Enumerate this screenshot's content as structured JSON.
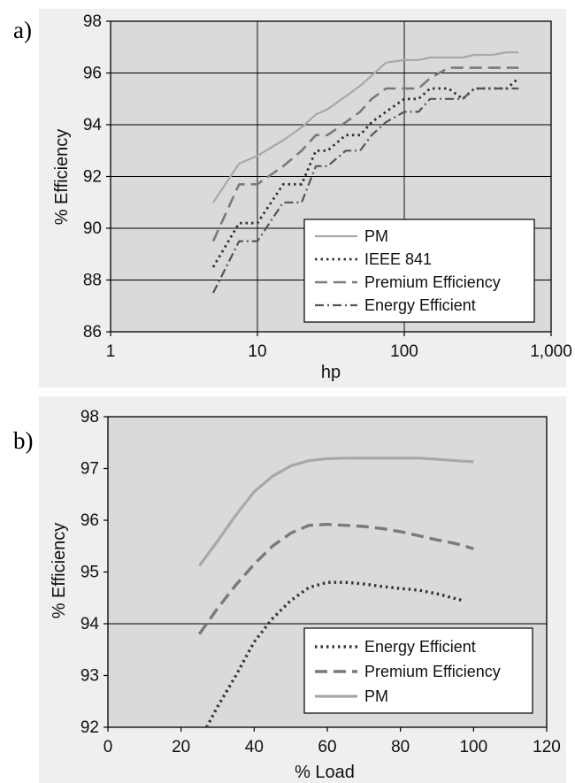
{
  "chart_data": [
    {
      "panel_label": "a)",
      "type": "line",
      "xlabel": "hp",
      "ylabel": "% Efficiency",
      "xscale": "log",
      "xlim": [
        1,
        1000
      ],
      "ylim": [
        86,
        98
      ],
      "xticks": [
        1,
        10,
        100,
        1000
      ],
      "xtick_labels": [
        "1",
        "10",
        "100",
        "1,000"
      ],
      "yticks": [
        86,
        88,
        90,
        92,
        94,
        96,
        98
      ],
      "ytick_labels": [
        "86",
        "88",
        "90",
        "92",
        "94",
        "96",
        "98"
      ],
      "grid": "major x and y",
      "legend": "bottom-right",
      "series": [
        {
          "name": "PM",
          "color": "#a8a8a8",
          "style": "solid",
          "x": [
            5,
            7.5,
            10,
            15,
            20,
            25,
            30,
            40,
            50,
            60,
            75,
            100,
            125,
            150,
            200,
            250,
            300,
            400,
            500,
            600
          ],
          "y": [
            91.0,
            92.5,
            92.8,
            93.4,
            93.9,
            94.4,
            94.6,
            95.1,
            95.5,
            95.9,
            96.4,
            96.5,
            96.5,
            96.6,
            96.6,
            96.6,
            96.7,
            96.7,
            96.8,
            96.8
          ]
        },
        {
          "name": "IEEE 841",
          "color": "#333333",
          "style": "dotted",
          "x": [
            5,
            7.5,
            10,
            15,
            20,
            25,
            30,
            40,
            50,
            60,
            75,
            100,
            125,
            150,
            200,
            250,
            300,
            400,
            500,
            600
          ],
          "y": [
            88.5,
            90.2,
            90.2,
            91.7,
            91.7,
            93.0,
            93.0,
            93.6,
            93.6,
            94.1,
            94.5,
            95.0,
            95.0,
            95.4,
            95.4,
            95.0,
            95.4,
            95.4,
            95.4,
            95.8
          ]
        },
        {
          "name": "Premium Efficiency",
          "color": "#7a7a7a",
          "style": "dashed",
          "x": [
            5,
            7.5,
            10,
            15,
            20,
            25,
            30,
            40,
            50,
            60,
            75,
            100,
            125,
            150,
            200,
            250,
            300,
            400,
            500,
            600
          ],
          "y": [
            89.5,
            91.7,
            91.7,
            92.4,
            93.0,
            93.6,
            93.6,
            94.1,
            94.5,
            95.0,
            95.4,
            95.4,
            95.4,
            95.8,
            96.2,
            96.2,
            96.2,
            96.2,
            96.2,
            96.2
          ]
        },
        {
          "name": "Energy Efficient",
          "color": "#555555",
          "style": "dashdot",
          "x": [
            5,
            7.5,
            10,
            15,
            20,
            25,
            30,
            40,
            50,
            60,
            75,
            100,
            125,
            150,
            200,
            250,
            300,
            400,
            500,
            600
          ],
          "y": [
            87.5,
            89.5,
            89.5,
            91.0,
            91.0,
            92.4,
            92.4,
            93.0,
            93.0,
            93.6,
            94.1,
            94.5,
            94.5,
            95.0,
            95.0,
            95.0,
            95.4,
            95.4,
            95.4,
            95.4
          ]
        }
      ]
    },
    {
      "panel_label": "b)",
      "type": "line",
      "xlabel": "% Load",
      "ylabel": "% Efficiency",
      "xlim": [
        0,
        120
      ],
      "ylim": [
        92,
        98
      ],
      "xticks": [
        0,
        20,
        40,
        60,
        80,
        100,
        120
      ],
      "xtick_labels": [
        "0",
        "20",
        "40",
        "60",
        "80",
        "100",
        "120"
      ],
      "yticks": [
        92,
        93,
        94,
        95,
        96,
        97,
        98
      ],
      "ytick_labels": [
        "92",
        "93",
        "94",
        "95",
        "96",
        "97",
        "98"
      ],
      "grid": "y at 94",
      "legend": "bottom-right",
      "series": [
        {
          "name": "Energy Efficient",
          "color": "#333333",
          "style": "dotted",
          "x": [
            27,
            30,
            35,
            40,
            45,
            50,
            55,
            60,
            65,
            70,
            75,
            80,
            85,
            90,
            97
          ],
          "y": [
            92.0,
            92.4,
            93.0,
            93.65,
            94.1,
            94.45,
            94.7,
            94.8,
            94.8,
            94.77,
            94.72,
            94.68,
            94.65,
            94.58,
            94.45
          ]
        },
        {
          "name": "Premium Efficiency",
          "color": "#7a7a7a",
          "style": "dashed",
          "x": [
            25,
            30,
            35,
            40,
            45,
            50,
            55,
            60,
            65,
            70,
            75,
            80,
            85,
            90,
            95,
            100
          ],
          "y": [
            93.8,
            94.3,
            94.75,
            95.15,
            95.5,
            95.75,
            95.9,
            95.92,
            95.9,
            95.88,
            95.84,
            95.78,
            95.7,
            95.62,
            95.55,
            95.45
          ]
        },
        {
          "name": "PM",
          "color": "#a8a8a8",
          "style": "solid",
          "x": [
            25,
            30,
            35,
            40,
            45,
            50,
            55,
            60,
            65,
            70,
            75,
            80,
            85,
            90,
            95,
            100
          ],
          "y": [
            95.12,
            95.6,
            96.1,
            96.55,
            96.85,
            97.05,
            97.15,
            97.19,
            97.2,
            97.2,
            97.2,
            97.2,
            97.2,
            97.18,
            97.15,
            97.13
          ]
        }
      ]
    }
  ]
}
